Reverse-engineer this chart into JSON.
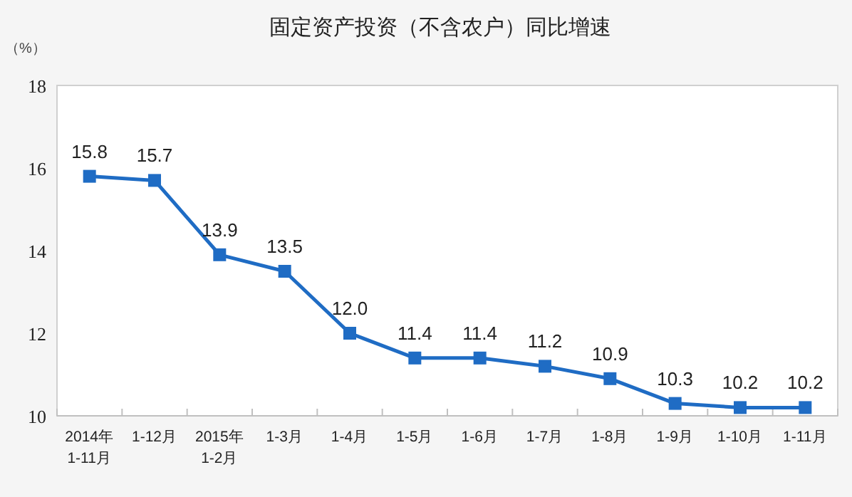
{
  "chart_data": {
    "type": "line",
    "title": "固定资产投资（不含农户）同比增速",
    "ylabel": "（%）",
    "categories": [
      "2014年 1-11月",
      "1-12月",
      "2015年 1-2月",
      "1-3月",
      "1-4月",
      "1-5月",
      "1-6月",
      "1-7月",
      "1-8月",
      "1-9月",
      "1-10月",
      "1-11月"
    ],
    "values": [
      15.8,
      15.7,
      13.9,
      13.5,
      12.0,
      11.4,
      11.4,
      11.2,
      10.9,
      10.3,
      10.2,
      10.2
    ],
    "value_labels": [
      "15.8",
      "15.7",
      "13.9",
      "13.5",
      "12.0",
      "11.4",
      "11.4",
      "11.2",
      "10.9",
      "10.3",
      "10.2",
      "10.2"
    ],
    "color": "#1f6cc4",
    "marker": "square",
    "grid": false,
    "ylim": [
      10,
      18
    ],
    "yticks": [
      10,
      12,
      14,
      16,
      18
    ]
  }
}
